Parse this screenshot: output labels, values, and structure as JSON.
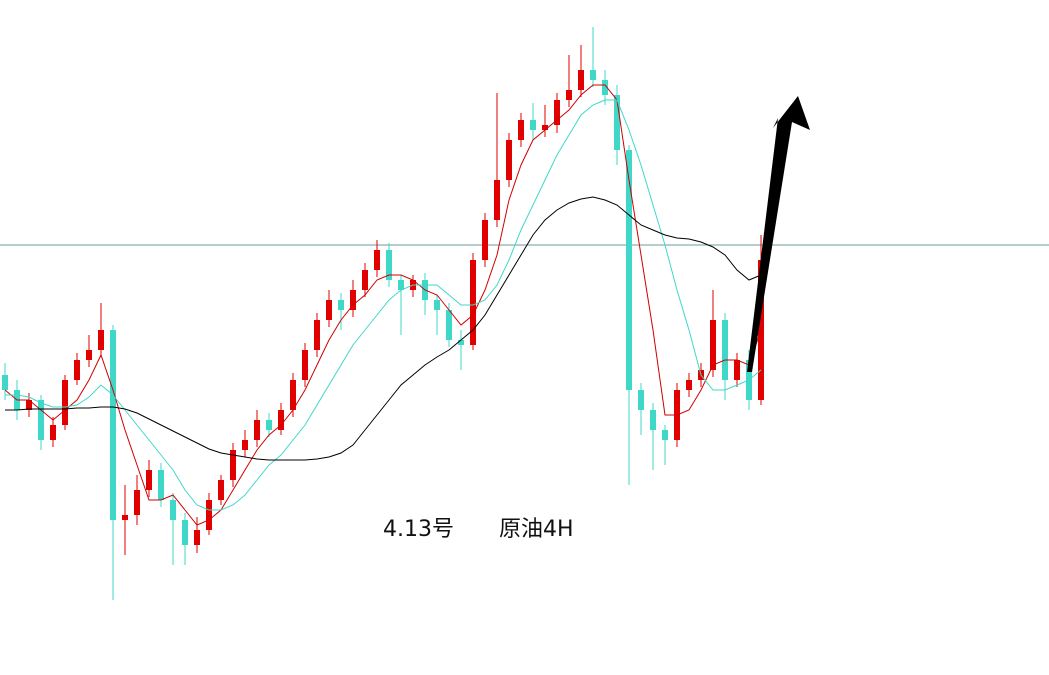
{
  "chart_data": {
    "type": "candlestick",
    "labels": [
      "4.13号",
      "原油4H"
    ],
    "ylim": [
      0,
      675
    ],
    "price_line": 430,
    "up_color": "#e00000",
    "down_color": "#3fd8c8",
    "candles": [
      [
        300,
        312,
        275,
        285
      ],
      [
        285,
        295,
        255,
        265
      ],
      [
        265,
        282,
        258,
        275
      ],
      [
        275,
        280,
        225,
        235
      ],
      [
        235,
        258,
        228,
        250
      ],
      [
        250,
        300,
        245,
        295
      ],
      [
        295,
        322,
        290,
        315
      ],
      [
        315,
        340,
        308,
        325
      ],
      [
        325,
        372,
        318,
        345
      ],
      [
        345,
        350,
        75,
        155
      ],
      [
        155,
        190,
        120,
        160
      ],
      [
        160,
        200,
        150,
        185
      ],
      [
        185,
        215,
        178,
        205
      ],
      [
        205,
        212,
        168,
        175
      ],
      [
        175,
        182,
        110,
        155
      ],
      [
        155,
        162,
        110,
        130
      ],
      [
        130,
        158,
        122,
        145
      ],
      [
        145,
        182,
        140,
        175
      ],
      [
        175,
        200,
        170,
        195
      ],
      [
        195,
        232,
        188,
        225
      ],
      [
        225,
        245,
        218,
        235
      ],
      [
        235,
        265,
        228,
        255
      ],
      [
        255,
        262,
        238,
        245
      ],
      [
        245,
        272,
        240,
        265
      ],
      [
        265,
        302,
        258,
        295
      ],
      [
        295,
        332,
        288,
        325
      ],
      [
        325,
        362,
        318,
        355
      ],
      [
        355,
        385,
        348,
        375
      ],
      [
        375,
        382,
        345,
        365
      ],
      [
        365,
        395,
        358,
        385
      ],
      [
        385,
        412,
        378,
        405
      ],
      [
        405,
        435,
        398,
        425
      ],
      [
        425,
        432,
        388,
        395
      ],
      [
        395,
        400,
        340,
        385
      ],
      [
        385,
        400,
        378,
        395
      ],
      [
        395,
        402,
        360,
        375
      ],
      [
        375,
        380,
        340,
        365
      ],
      [
        365,
        372,
        328,
        335
      ],
      [
        335,
        345,
        305,
        330
      ],
      [
        330,
        422,
        325,
        415
      ],
      [
        415,
        462,
        408,
        455
      ],
      [
        455,
        582,
        448,
        495
      ],
      [
        495,
        542,
        488,
        535
      ],
      [
        535,
        562,
        528,
        555
      ],
      [
        555,
        572,
        535,
        545
      ],
      [
        545,
        570,
        538,
        550
      ],
      [
        550,
        582,
        542,
        575
      ],
      [
        575,
        620,
        568,
        585
      ],
      [
        585,
        630,
        578,
        605
      ],
      [
        605,
        648,
        588,
        595
      ],
      [
        595,
        605,
        570,
        580
      ],
      [
        580,
        590,
        510,
        525
      ],
      [
        525,
        530,
        190,
        285
      ],
      [
        285,
        292,
        240,
        265
      ],
      [
        265,
        272,
        205,
        245
      ],
      [
        245,
        250,
        210,
        235
      ],
      [
        235,
        292,
        228,
        285
      ],
      [
        285,
        302,
        278,
        295
      ],
      [
        295,
        312,
        288,
        305
      ],
      [
        305,
        385,
        298,
        355
      ],
      [
        355,
        362,
        275,
        295
      ],
      [
        295,
        322,
        288,
        315
      ],
      [
        315,
        325,
        265,
        275
      ],
      [
        275,
        440,
        270,
        415
      ]
    ],
    "lines": [
      {
        "color": "#d00000",
        "values": [
          285,
          275,
          275,
          265,
          255,
          265,
          275,
          295,
          320,
          285,
          245,
          210,
          175,
          175,
          180,
          165,
          150,
          155,
          165,
          185,
          205,
          225,
          240,
          250,
          265,
          285,
          310,
          335,
          355,
          370,
          380,
          395,
          400,
          400,
          395,
          385,
          380,
          365,
          350,
          360,
          385,
          420,
          475,
          510,
          535,
          545,
          555,
          565,
          580,
          590,
          590,
          575,
          495,
          420,
          345,
          260,
          260,
          265,
          285,
          310,
          315,
          315,
          310,
          345
        ]
      },
      {
        "color": "#3fd8c8",
        "values": [
          280,
          280,
          278,
          272,
          268,
          268,
          270,
          278,
          290,
          280,
          265,
          250,
          235,
          220,
          205,
          185,
          170,
          165,
          165,
          170,
          180,
          195,
          210,
          220,
          235,
          250,
          270,
          290,
          310,
          330,
          345,
          360,
          375,
          385,
          390,
          390,
          390,
          380,
          370,
          370,
          375,
          390,
          415,
          445,
          470,
          495,
          520,
          540,
          560,
          570,
          575,
          575,
          545,
          510,
          470,
          430,
          385,
          345,
          300,
          285,
          285,
          290,
          295,
          305
        ]
      },
      {
        "color": "#000000",
        "values": [
          265,
          265,
          266,
          266,
          266,
          266,
          267,
          267,
          268,
          268,
          266,
          262,
          256,
          250,
          244,
          238,
          232,
          226,
          222,
          220,
          218,
          216,
          215,
          215,
          215,
          215,
          216,
          218,
          222,
          230,
          245,
          260,
          275,
          290,
          300,
          310,
          318,
          325,
          335,
          345,
          360,
          380,
          400,
          420,
          440,
          455,
          465,
          472,
          476,
          478,
          475,
          470,
          460,
          450,
          445,
          440,
          437,
          436,
          433,
          428,
          420,
          405,
          395,
          400
        ]
      }
    ]
  }
}
